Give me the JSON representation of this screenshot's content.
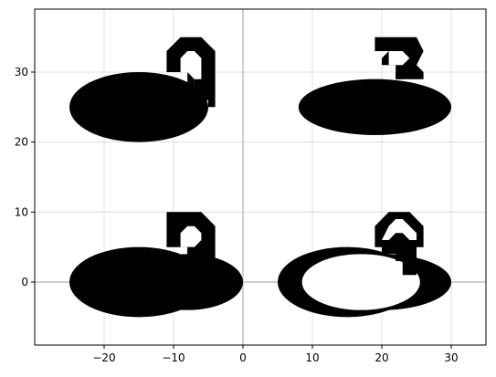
{
  "chart_data": {
    "type": "scatter",
    "title": "",
    "xlabel": "",
    "ylabel": "",
    "xlim": [
      -30,
      35
    ],
    "ylim": [
      -9,
      39
    ],
    "xticks": [
      -20,
      -10,
      0,
      10,
      20,
      30
    ],
    "xtick_labels": [
      "−20",
      "−10",
      "0",
      "10",
      "20",
      "30"
    ],
    "yticks": [
      0,
      10,
      20,
      30
    ],
    "ytick_labels": [
      "0",
      "10",
      "20",
      "30"
    ],
    "grid": true,
    "reference_lines": {
      "x": 0,
      "y": 0
    },
    "ellipses": [
      {
        "name": "ellipse-top-left",
        "cx": -15,
        "cy": 25,
        "rx": 10,
        "ry": 5,
        "fill": "#000000"
      },
      {
        "name": "ellipse-top-right",
        "cx": 19,
        "cy": 25,
        "rx": 11,
        "ry": 4,
        "fill": "#000000"
      },
      {
        "name": "ellipse-bottom-left-back",
        "cx": -15,
        "cy": 0,
        "rx": 10,
        "ry": 5,
        "fill": "#000000"
      },
      {
        "name": "ellipse-bottom-left-front",
        "cx": -8,
        "cy": 0,
        "rx": 8,
        "ry": 4,
        "fill": "#000000"
      },
      {
        "name": "ellipse-bottom-right-outer",
        "cx": 15,
        "cy": 0,
        "rx": 10,
        "ry": 5,
        "fill": "#000000"
      },
      {
        "name": "ellipse-bottom-right-ring-a",
        "cx": 20,
        "cy": 0,
        "rx": 10,
        "ry": 4,
        "fill": "#000000"
      },
      {
        "name": "ellipse-bottom-right-hole",
        "cx": 17,
        "cy": 0,
        "rx": 8.5,
        "ry": 4,
        "fill": "#ffffff"
      }
    ],
    "glyphs": [
      {
        "name": "glyph-top-left",
        "fill": "#000000",
        "outer": [
          [
            -11,
            33
          ],
          [
            -9,
            35
          ],
          [
            -6,
            35
          ],
          [
            -4,
            33
          ],
          [
            -4,
            25
          ],
          [
            -5,
            25
          ],
          [
            -5,
            26
          ],
          [
            -7,
            26
          ],
          [
            -7,
            29
          ],
          [
            -8,
            29
          ],
          [
            -8,
            30
          ],
          [
            -11,
            30
          ]
        ],
        "hole": [
          [
            -9,
            32
          ],
          [
            -8,
            33
          ],
          [
            -7,
            33
          ],
          [
            -6,
            32
          ],
          [
            -6,
            29
          ],
          [
            -7,
            29
          ],
          [
            -8,
            30
          ],
          [
            -9,
            30
          ]
        ],
        "notch": [
          [
            -8,
            29
          ],
          [
            -7,
            29
          ],
          [
            -7,
            28
          ],
          [
            -8,
            28
          ]
        ]
      },
      {
        "name": "glyph-top-right",
        "fill": "#000000",
        "outer": [
          [
            19,
            35
          ],
          [
            25,
            35
          ],
          [
            26,
            33
          ],
          [
            25,
            31
          ],
          [
            26,
            30
          ],
          [
            26,
            29
          ],
          [
            22,
            29
          ],
          [
            22,
            31
          ],
          [
            20,
            31
          ],
          [
            20,
            32
          ],
          [
            21,
            33
          ],
          [
            19,
            33
          ]
        ],
        "hole": [
          [
            21,
            33
          ],
          [
            23,
            33
          ],
          [
            24,
            32
          ],
          [
            23,
            31
          ],
          [
            21,
            31
          ]
        ],
        "notch": [
          [
            22,
            30
          ],
          [
            23,
            30
          ],
          [
            23,
            29
          ],
          [
            22,
            29
          ]
        ]
      },
      {
        "name": "glyph-bottom-left",
        "fill": "#000000",
        "outer": [
          [
            -11,
            10
          ],
          [
            -6,
            10
          ],
          [
            -4,
            8
          ],
          [
            -4,
            3
          ],
          [
            -5,
            3
          ],
          [
            -5,
            2
          ],
          [
            -7,
            2
          ],
          [
            -7,
            4
          ],
          [
            -8,
            4
          ],
          [
            -8,
            5
          ],
          [
            -11,
            5
          ]
        ],
        "hole": [
          [
            -9,
            7
          ],
          [
            -8,
            8
          ],
          [
            -7,
            8
          ],
          [
            -6,
            7
          ],
          [
            -6,
            6
          ],
          [
            -7,
            5
          ],
          [
            -8,
            5
          ],
          [
            -9,
            5
          ]
        ],
        "notch": [
          [
            -8,
            5
          ],
          [
            -7,
            5
          ],
          [
            -7,
            3
          ],
          [
            -8,
            3
          ]
        ]
      },
      {
        "name": "glyph-bottom-right",
        "fill": "#000000",
        "outer": [
          [
            19,
            8
          ],
          [
            21,
            10
          ],
          [
            24,
            10
          ],
          [
            26,
            8
          ],
          [
            26,
            5
          ],
          [
            25,
            5
          ],
          [
            25,
            1
          ],
          [
            23,
            1
          ],
          [
            23,
            3
          ],
          [
            22,
            3
          ],
          [
            22,
            4
          ],
          [
            20,
            4
          ],
          [
            20,
            5
          ],
          [
            19,
            5
          ]
        ],
        "hole": [
          [
            21,
            8
          ],
          [
            22,
            9
          ],
          [
            23,
            9
          ],
          [
            25,
            7
          ],
          [
            25,
            6
          ],
          [
            24,
            6
          ],
          [
            23,
            7
          ],
          [
            22,
            7
          ],
          [
            21,
            6
          ],
          [
            20,
            6
          ]
        ],
        "notch": [
          [
            22,
            6
          ],
          [
            23,
            6
          ],
          [
            23,
            4
          ],
          [
            22,
            4
          ]
        ]
      }
    ]
  }
}
